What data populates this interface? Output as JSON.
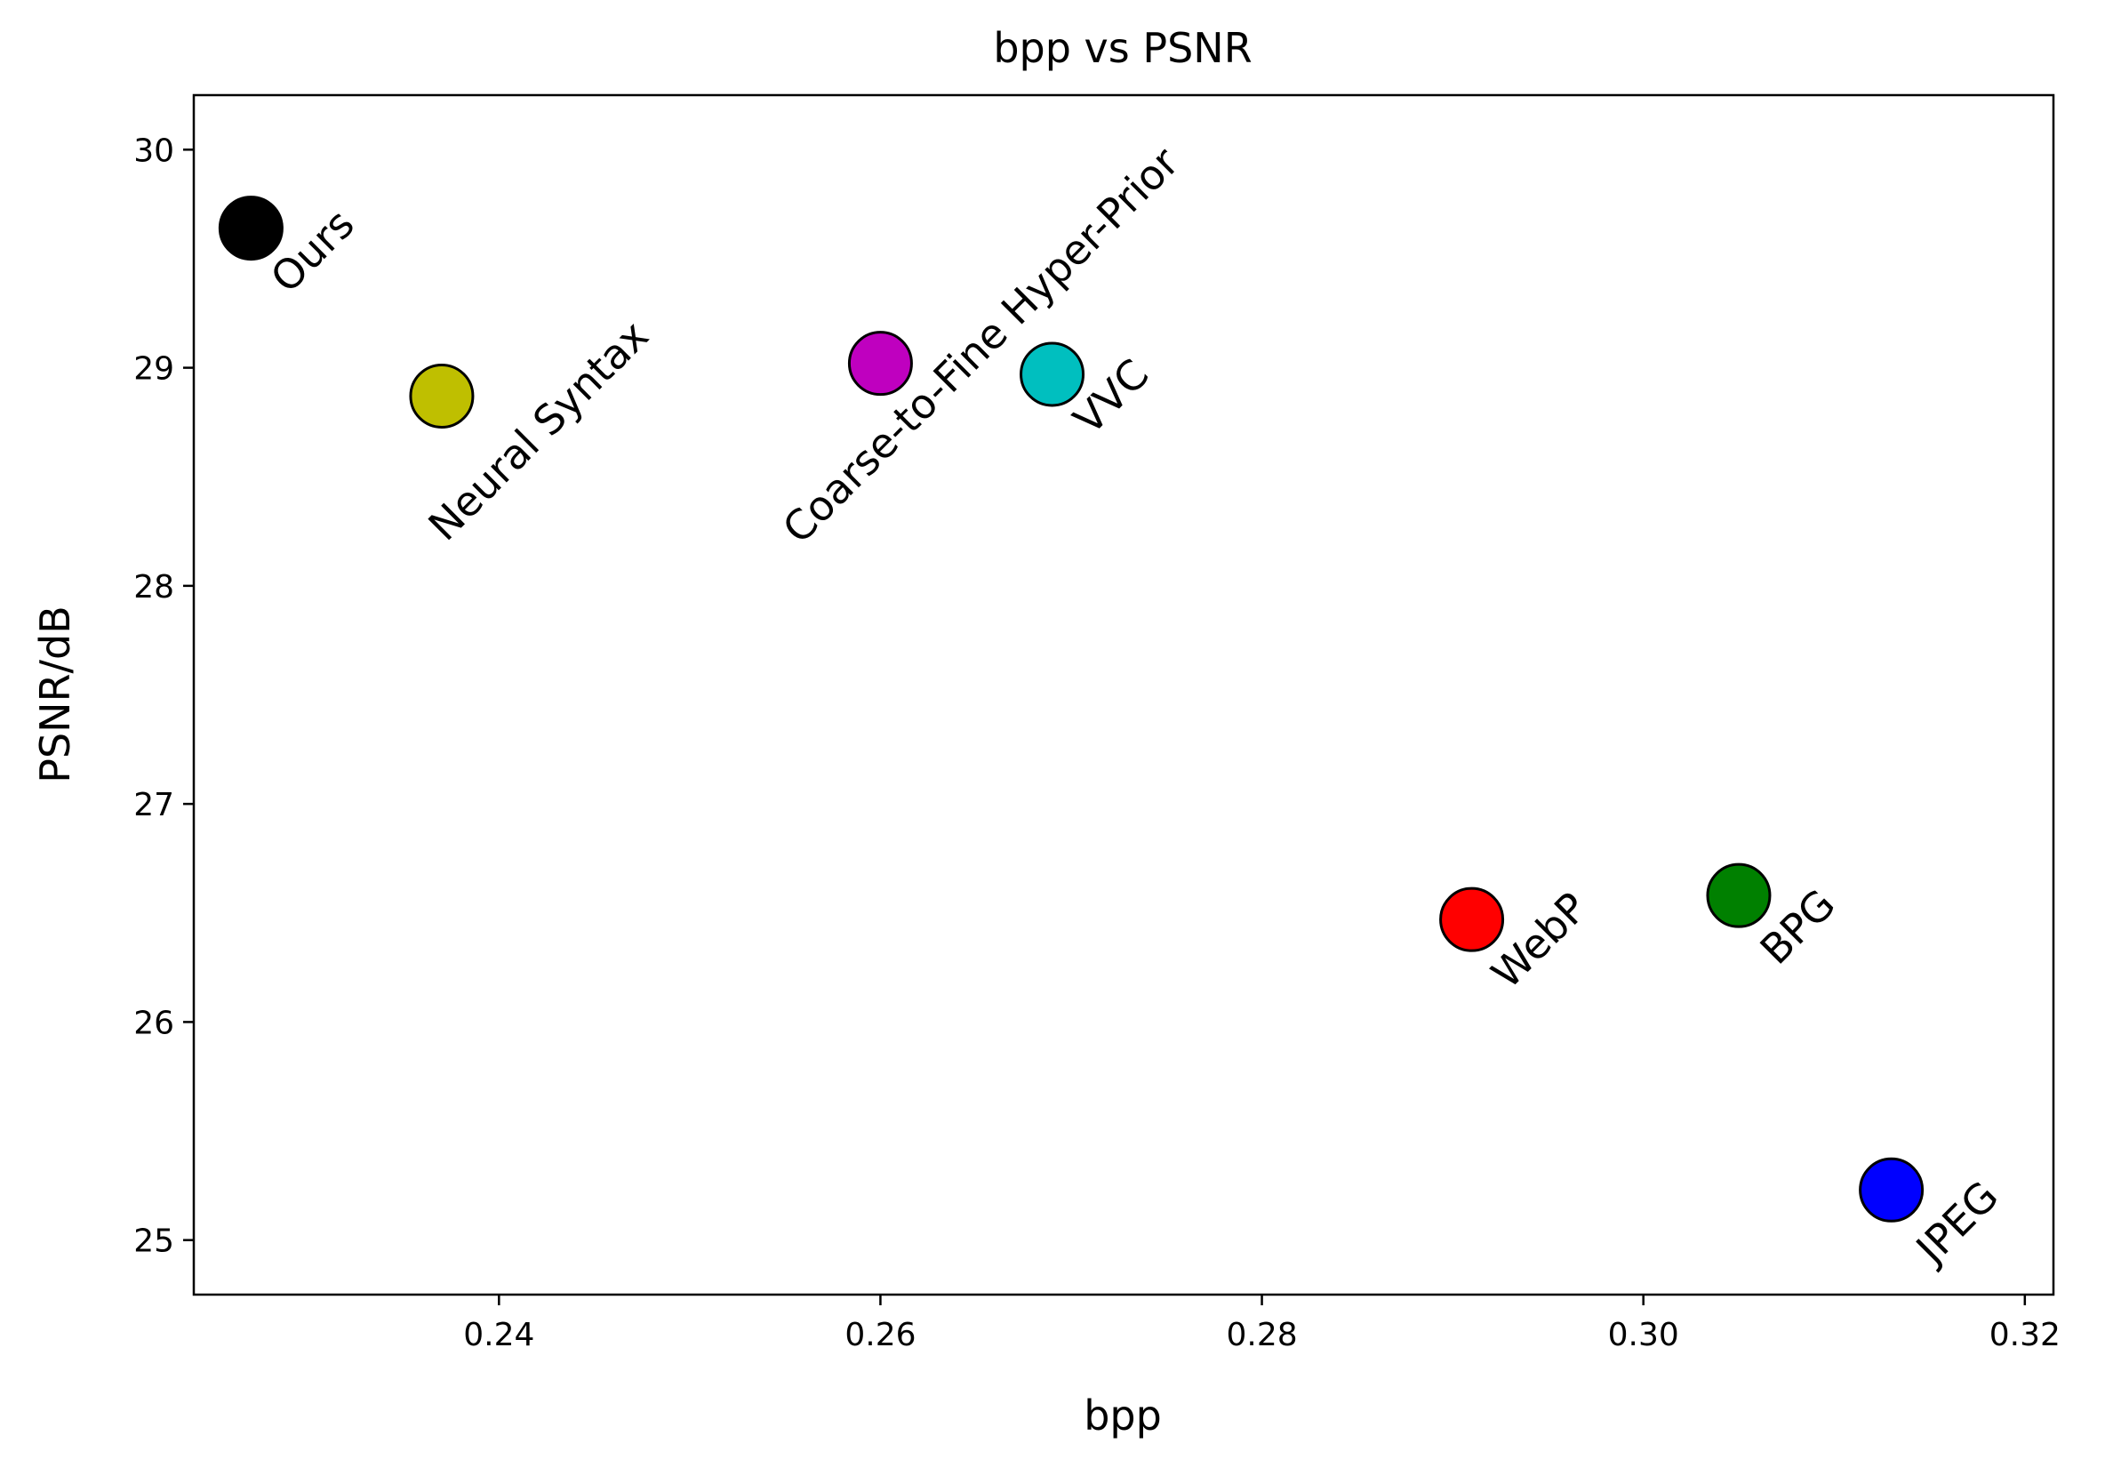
{
  "chart_data": {
    "type": "scatter",
    "title": "bpp vs PSNR",
    "xlabel": "bpp",
    "ylabel": "PSNR/dB",
    "xlim": [
      0.224,
      0.3215
    ],
    "ylim": [
      24.75,
      30.25
    ],
    "xticks": [
      0.24,
      0.26,
      0.28,
      0.3,
      0.32
    ],
    "xtick_labels": [
      "0.24",
      "0.26",
      "0.28",
      "0.30",
      "0.32"
    ],
    "yticks": [
      25,
      26,
      27,
      28,
      29,
      30
    ],
    "ytick_labels": [
      "25",
      "26",
      "27",
      "28",
      "29",
      "30"
    ],
    "grid": false,
    "points": [
      {
        "name": "Ours",
        "x": 0.227,
        "y": 29.64,
        "color": "#000000"
      },
      {
        "name": "Neural Syntax",
        "x": 0.237,
        "y": 28.87,
        "color": "#bfbf00"
      },
      {
        "name": "Coarse-to-Fine Hyper-Prior",
        "x": 0.26,
        "y": 29.02,
        "color": "#bf00bf"
      },
      {
        "name": "VVC",
        "x": 0.269,
        "y": 28.97,
        "color": "#00bfbf"
      },
      {
        "name": "WebP",
        "x": 0.291,
        "y": 26.47,
        "color": "#ff0000"
      },
      {
        "name": "BPG",
        "x": 0.305,
        "y": 26.58,
        "color": "#008000"
      },
      {
        "name": "JPEG",
        "x": 0.313,
        "y": 25.23,
        "color": "#0000ff"
      }
    ]
  }
}
